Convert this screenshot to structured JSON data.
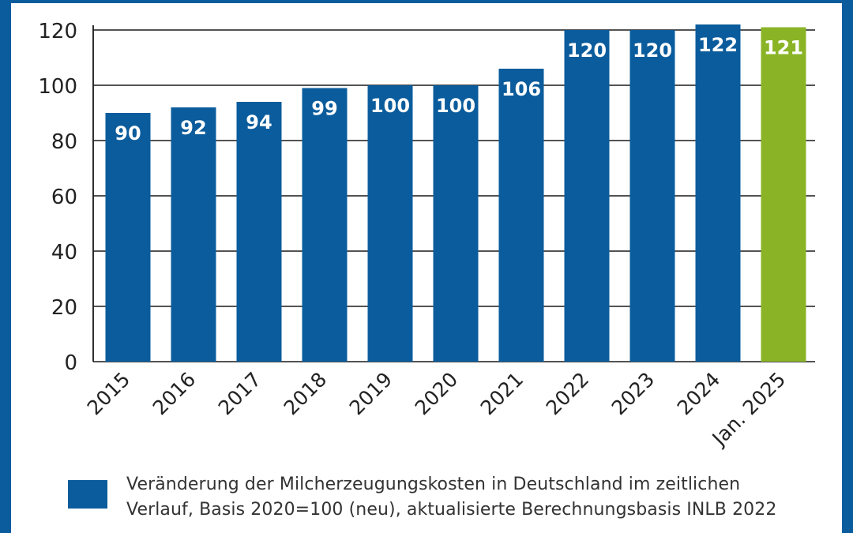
{
  "chart_data": {
    "type": "bar",
    "categories": [
      "2015",
      "2016",
      "2017",
      "2018",
      "2019",
      "2020",
      "2021",
      "2022",
      "2023",
      "2024",
      "Jan. 2025"
    ],
    "series": [
      {
        "name": "Veränderung der Milcherzeugungskosten in Deutschland im zeitlichen Verlauf, Basis 2020=100 (neu), aktualisierte Berechnungsbasis INLB 2022",
        "values": [
          90,
          92,
          94,
          99,
          100,
          100,
          106,
          120,
          120,
          122,
          121
        ]
      }
    ],
    "data_labels": [
      "90",
      "92",
      "94",
      "99",
      "100",
      "100",
      "106",
      "120",
      "120",
      "122",
      "121"
    ],
    "yticks": [
      "0",
      "20",
      "40",
      "60",
      "80",
      "100",
      "120"
    ],
    "ylim": [
      0,
      120
    ],
    "grid": "horizontal",
    "legend_position": "bottom",
    "title": "",
    "xlabel": "",
    "ylabel": ""
  },
  "legend": {
    "line1": "Veränderung der Milcherzeugungskosten in Deutschland im zeitlichen",
    "line2": "Verlauf, Basis 2020=100 (neu), aktualisierte Berechnungsbasis INLB 2022"
  },
  "colors": {
    "bar": "#0a5c9c",
    "highlight": "#8ab426",
    "frame": "#0a5c9c",
    "grid": "#1a1a1a",
    "axis_text": "#222222",
    "label_text": "#ffffff"
  }
}
